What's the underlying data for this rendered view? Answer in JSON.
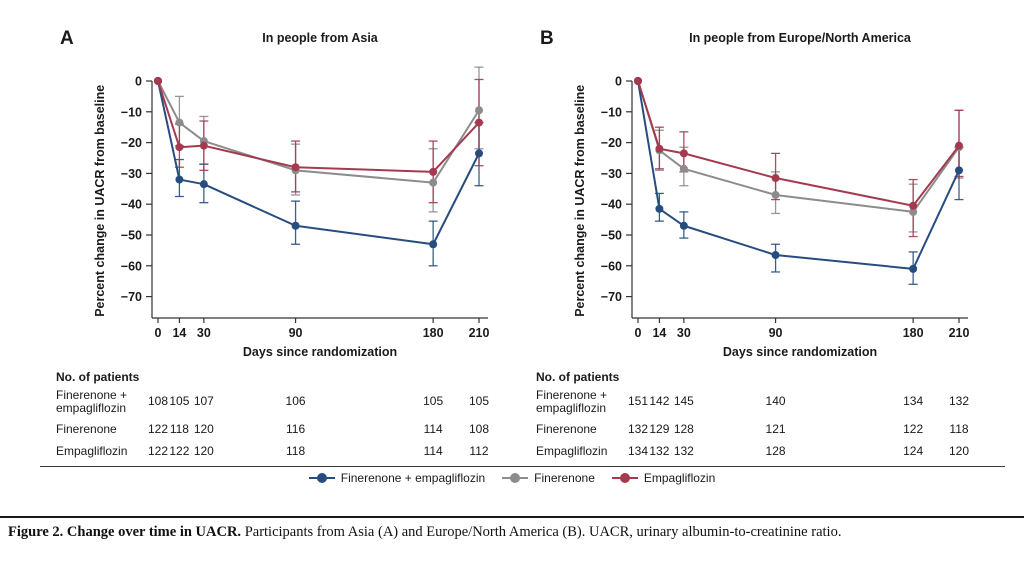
{
  "figure": {
    "caption": {
      "bold": "Figure 2. Change over time in UACR.",
      "rest": " Participants from Asia (A) and Europe/North America (B). UACR, urinary albumin-to-creatinine ratio."
    },
    "legend": [
      {
        "label": "Finerenone + empagliflozin",
        "color": "#274d7f"
      },
      {
        "label": "Finerenone",
        "color": "#8c8c8c"
      },
      {
        "label": "Empagliflozin",
        "color": "#a43a50"
      }
    ]
  },
  "chart_data": [
    {
      "type": "line",
      "panel": "A",
      "title": "In people from Asia",
      "xlabel": "Days since randomization",
      "ylabel": "Percent change in UACR from baseline",
      "x": [
        0,
        14,
        30,
        90,
        180,
        210
      ],
      "xlim": [
        0,
        210
      ],
      "ylim": [
        -70,
        0
      ],
      "yticks": [
        0,
        -10,
        -20,
        -30,
        -40,
        -50,
        -60,
        -70
      ],
      "grid": false,
      "legend_position": "bottom",
      "series": [
        {
          "name": "Finerenone + empagliflozin",
          "color": "#274d7f",
          "values": [
            0,
            -32,
            -33.5,
            -47,
            -53,
            -23.5
          ],
          "err": [
            null,
            [
              -37.5,
              -25.5
            ],
            [
              -39.5,
              -27
            ],
            [
              -53,
              -39
            ],
            [
              -60,
              -45.5
            ],
            [
              -34,
              -13.5
            ]
          ]
        },
        {
          "name": "Finerenone",
          "color": "#8c8c8c",
          "values": [
            0,
            -13.5,
            -19.5,
            -29,
            -33,
            -9.5
          ],
          "err": [
            null,
            [
              -21,
              -5
            ],
            [
              -27,
              -11.5
            ],
            [
              -37,
              -20.5
            ],
            [
              -42.5,
              -22
            ],
            [
              -22,
              4.5
            ]
          ]
        },
        {
          "name": "Empagliflozin",
          "color": "#a43a50",
          "values": [
            0,
            -21.5,
            -21,
            -28,
            -29.5,
            -13.5
          ],
          "err": [
            null,
            [
              -28,
              -14
            ],
            [
              -29,
              -13
            ],
            [
              -36,
              -19.5
            ],
            [
              -39.5,
              -19.5
            ],
            [
              -27.5,
              0.5
            ]
          ]
        }
      ],
      "patients": {
        "header": "No. of patients",
        "rows": [
          {
            "lines": [
              "Finerenone +",
              "empagliflozin"
            ],
            "counts": [
              108,
              105,
              107,
              106,
              105,
              105
            ]
          },
          {
            "lines": [
              "Finerenone"
            ],
            "counts": [
              122,
              118,
              120,
              116,
              114,
              108
            ]
          },
          {
            "lines": [
              "Empagliflozin"
            ],
            "counts": [
              122,
              122,
              120,
              118,
              114,
              112
            ]
          }
        ]
      }
    },
    {
      "type": "line",
      "panel": "B",
      "title": "In people from Europe/North America",
      "xlabel": "Days since randomization",
      "ylabel": "Percent change in UACR from baseline",
      "x": [
        0,
        14,
        30,
        90,
        180,
        210
      ],
      "xlim": [
        0,
        210
      ],
      "ylim": [
        -70,
        0
      ],
      "yticks": [
        0,
        -10,
        -20,
        -30,
        -40,
        -50,
        -60,
        -70
      ],
      "grid": false,
      "legend_position": "bottom",
      "series": [
        {
          "name": "Finerenone + empagliflozin",
          "color": "#274d7f",
          "values": [
            0,
            -41.5,
            -47,
            -56.5,
            -61,
            -29
          ],
          "err": [
            null,
            [
              -45.5,
              -36.5
            ],
            [
              -51,
              -42.5
            ],
            [
              -62,
              -53
            ],
            [
              -66,
              -55.5
            ],
            [
              -38.5,
              -21.5
            ]
          ]
        },
        {
          "name": "Finerenone",
          "color": "#8c8c8c",
          "values": [
            0,
            -22.5,
            -28.5,
            -37,
            -42.5,
            -21.5
          ],
          "err": [
            null,
            [
              -29,
              -16
            ],
            [
              -34,
              -21.5
            ],
            [
              -43,
              -29.5
            ],
            [
              -49,
              -33.5
            ],
            [
              -31.5,
              -9.5
            ]
          ]
        },
        {
          "name": "Empagliflozin",
          "color": "#a43a50",
          "values": [
            0,
            -22,
            -23.5,
            -31.5,
            -40.5,
            -21
          ],
          "err": [
            null,
            [
              -28.5,
              -15
            ],
            [
              -29.5,
              -16.5
            ],
            [
              -38.5,
              -23.5
            ],
            [
              -50.5,
              -32
            ],
            [
              -31,
              -9.5
            ]
          ]
        }
      ],
      "patients": {
        "header": "No. of patients",
        "rows": [
          {
            "lines": [
              "Finerenone +",
              "empagliflozin"
            ],
            "counts": [
              151,
              142,
              145,
              140,
              134,
              132
            ]
          },
          {
            "lines": [
              "Finerenone"
            ],
            "counts": [
              132,
              129,
              128,
              121,
              122,
              118
            ]
          },
          {
            "lines": [
              "Empagliflozin"
            ],
            "counts": [
              134,
              132,
              132,
              128,
              124,
              120
            ]
          }
        ]
      }
    }
  ]
}
